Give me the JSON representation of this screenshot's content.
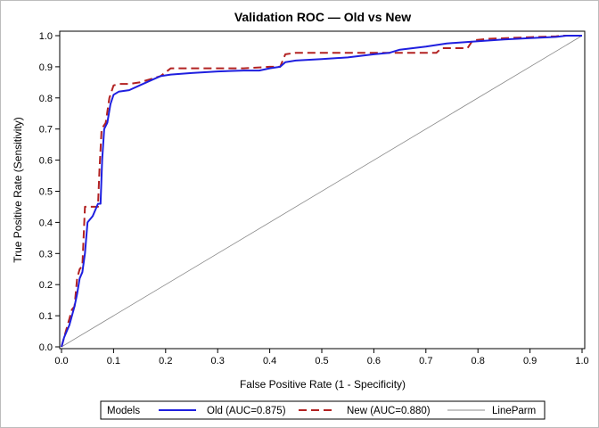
{
  "chart_data": {
    "type": "line",
    "title": "Validation ROC — Old vs New",
    "xlabel": "False Positive Rate (1 - Specificity)",
    "ylabel": "True Positive Rate (Sensitivity)",
    "xlim": [
      0,
      1
    ],
    "ylim": [
      0,
      1
    ],
    "xticks": [
      "0.0",
      "0.1",
      "0.2",
      "0.3",
      "0.4",
      "0.5",
      "0.6",
      "0.7",
      "0.8",
      "0.9",
      "1.0"
    ],
    "yticks": [
      "0.0",
      "0.1",
      "0.2",
      "0.3",
      "0.4",
      "0.5",
      "0.6",
      "0.7",
      "0.8",
      "0.9",
      "1.0"
    ],
    "grid": false,
    "legend": {
      "title": "Models",
      "placement": "bottom"
    },
    "series": [
      {
        "name": "Old (AUC=0.875)",
        "color": "#1f1fdf",
        "style": "solid",
        "points": [
          [
            0,
            0
          ],
          [
            0.005,
            0.03
          ],
          [
            0.01,
            0.05
          ],
          [
            0.015,
            0.07
          ],
          [
            0.02,
            0.1
          ],
          [
            0.025,
            0.13
          ],
          [
            0.03,
            0.17
          ],
          [
            0.035,
            0.22
          ],
          [
            0.04,
            0.24
          ],
          [
            0.045,
            0.3
          ],
          [
            0.05,
            0.4
          ],
          [
            0.06,
            0.42
          ],
          [
            0.065,
            0.44
          ],
          [
            0.07,
            0.46
          ],
          [
            0.075,
            0.46
          ],
          [
            0.078,
            0.6
          ],
          [
            0.082,
            0.7
          ],
          [
            0.088,
            0.72
          ],
          [
            0.094,
            0.78
          ],
          [
            0.1,
            0.81
          ],
          [
            0.11,
            0.82
          ],
          [
            0.13,
            0.825
          ],
          [
            0.15,
            0.84
          ],
          [
            0.17,
            0.855
          ],
          [
            0.19,
            0.87
          ],
          [
            0.21,
            0.875
          ],
          [
            0.25,
            0.88
          ],
          [
            0.3,
            0.885
          ],
          [
            0.35,
            0.888
          ],
          [
            0.38,
            0.888
          ],
          [
            0.4,
            0.895
          ],
          [
            0.42,
            0.9
          ],
          [
            0.43,
            0.915
          ],
          [
            0.45,
            0.92
          ],
          [
            0.5,
            0.925
          ],
          [
            0.55,
            0.93
          ],
          [
            0.6,
            0.94
          ],
          [
            0.63,
            0.945
          ],
          [
            0.65,
            0.955
          ],
          [
            0.7,
            0.965
          ],
          [
            0.74,
            0.975
          ],
          [
            0.8,
            0.982
          ],
          [
            0.85,
            0.988
          ],
          [
            0.9,
            0.992
          ],
          [
            0.95,
            0.996
          ],
          [
            0.97,
            1.0
          ],
          [
            1.0,
            1.0
          ]
        ]
      },
      {
        "name": "New (AUC=0.880)",
        "color": "#b22222",
        "style": "dashed",
        "points": [
          [
            0,
            0
          ],
          [
            0.005,
            0.03
          ],
          [
            0.01,
            0.06
          ],
          [
            0.015,
            0.09
          ],
          [
            0.02,
            0.12
          ],
          [
            0.025,
            0.13
          ],
          [
            0.03,
            0.22
          ],
          [
            0.035,
            0.25
          ],
          [
            0.04,
            0.26
          ],
          [
            0.045,
            0.45
          ],
          [
            0.07,
            0.45
          ],
          [
            0.073,
            0.57
          ],
          [
            0.077,
            0.7
          ],
          [
            0.085,
            0.72
          ],
          [
            0.092,
            0.8
          ],
          [
            0.1,
            0.84
          ],
          [
            0.11,
            0.845
          ],
          [
            0.13,
            0.845
          ],
          [
            0.15,
            0.85
          ],
          [
            0.17,
            0.86
          ],
          [
            0.19,
            0.87
          ],
          [
            0.21,
            0.895
          ],
          [
            0.25,
            0.895
          ],
          [
            0.3,
            0.895
          ],
          [
            0.35,
            0.895
          ],
          [
            0.4,
            0.9
          ],
          [
            0.42,
            0.9
          ],
          [
            0.43,
            0.94
          ],
          [
            0.45,
            0.945
          ],
          [
            0.5,
            0.945
          ],
          [
            0.55,
            0.945
          ],
          [
            0.6,
            0.945
          ],
          [
            0.65,
            0.945
          ],
          [
            0.7,
            0.945
          ],
          [
            0.72,
            0.945
          ],
          [
            0.73,
            0.96
          ],
          [
            0.78,
            0.96
          ],
          [
            0.79,
            0.985
          ],
          [
            0.82,
            0.99
          ],
          [
            0.9,
            0.995
          ],
          [
            0.95,
            0.998
          ],
          [
            0.96,
            1.0
          ],
          [
            1.0,
            1.0
          ]
        ]
      },
      {
        "name": "LineParm",
        "color": "#888888",
        "style": "thin",
        "points": [
          [
            0,
            0
          ],
          [
            1,
            1
          ]
        ]
      }
    ]
  }
}
